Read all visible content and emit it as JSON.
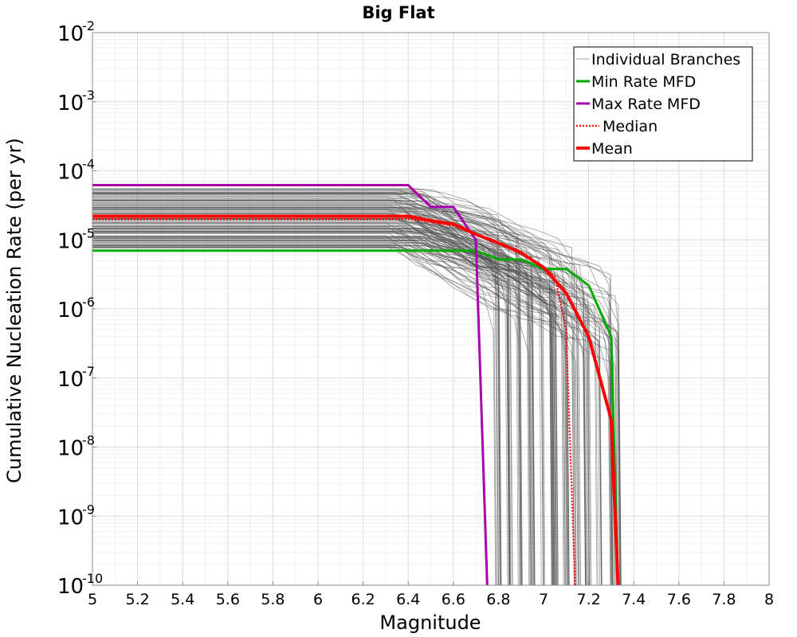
{
  "chart_data": {
    "type": "line",
    "title": "Big Flat",
    "xlabel": "Magnitude",
    "ylabel": "Cumulative Nucleation Rate (per yr)",
    "xlim": [
      5,
      8
    ],
    "ylim": [
      1e-10,
      0.01
    ],
    "yscale": "log",
    "grid": true,
    "x_ticks": [
      {
        "value": 5,
        "label": "5"
      },
      {
        "value": 5.2,
        "label": "5.2"
      },
      {
        "value": 5.4,
        "label": "5.4"
      },
      {
        "value": 5.6,
        "label": "5.6"
      },
      {
        "value": 5.8,
        "label": "5.8"
      },
      {
        "value": 6,
        "label": "6"
      },
      {
        "value": 6.2,
        "label": "6.2"
      },
      {
        "value": 6.4,
        "label": "6.4"
      },
      {
        "value": 6.6,
        "label": "6.6"
      },
      {
        "value": 6.8,
        "label": "6.8"
      },
      {
        "value": 7,
        "label": "7"
      },
      {
        "value": 7.2,
        "label": "7.2"
      },
      {
        "value": 7.4,
        "label": "7.4"
      },
      {
        "value": 7.6,
        "label": "7.6"
      },
      {
        "value": 7.8,
        "label": "7.8"
      },
      {
        "value": 8,
        "label": "8"
      }
    ],
    "y_ticks": [
      {
        "exp": -2,
        "base": "10",
        "sup": "-2"
      },
      {
        "exp": -3,
        "base": "10",
        "sup": "-3"
      },
      {
        "exp": -4,
        "base": "10",
        "sup": "-4"
      },
      {
        "exp": -5,
        "base": "10",
        "sup": "-5"
      },
      {
        "exp": -6,
        "base": "10",
        "sup": "-6"
      },
      {
        "exp": -7,
        "base": "10",
        "sup": "-7"
      },
      {
        "exp": -8,
        "base": "10",
        "sup": "-8"
      },
      {
        "exp": -9,
        "base": "10",
        "sup": "-9"
      },
      {
        "exp": -10,
        "base": "10",
        "sup": "-10"
      }
    ],
    "legend_position": "top-right",
    "legend": [
      {
        "label": "Individual Branches",
        "color": "#a9a9a9",
        "style": "thin"
      },
      {
        "label": "Min Rate MFD",
        "color": "#00aa00",
        "style": "solid"
      },
      {
        "label": "Max Rate MFD",
        "color": "#aa00aa",
        "style": "solid"
      },
      {
        "label": "Median",
        "color": "#ff0000",
        "style": "dotted"
      },
      {
        "label": "Mean",
        "color": "#ff0000",
        "style": "solid-thick"
      }
    ],
    "series": [
      {
        "name": "Min Rate MFD",
        "color": "#00aa00",
        "x": [
          5.0,
          6.7,
          6.8,
          6.9,
          7.0,
          7.1,
          7.2,
          7.3,
          7.33
        ],
        "y": [
          7e-06,
          7e-06,
          5.2e-06,
          5.2e-06,
          3.8e-06,
          3.8e-06,
          2.2e-06,
          4e-07,
          1e-10
        ]
      },
      {
        "name": "Max Rate MFD",
        "color": "#aa00aa",
        "x": [
          5.0,
          6.4,
          6.5,
          6.6,
          6.7,
          6.75
        ],
        "y": [
          6.2e-05,
          6.2e-05,
          3e-05,
          3e-05,
          1e-05,
          1e-10
        ]
      },
      {
        "name": "Mean",
        "color": "#ff0000",
        "x": [
          5.0,
          6.4,
          6.5,
          6.6,
          6.7,
          6.8,
          6.9,
          7.0,
          7.1,
          7.2,
          7.3,
          7.33
        ],
        "y": [
          2.2e-05,
          2.2e-05,
          1.9e-05,
          1.7e-05,
          1.2e-05,
          9e-06,
          6.5e-06,
          4e-06,
          1.7e-06,
          4e-07,
          2.5e-08,
          1e-10
        ]
      },
      {
        "name": "Median",
        "color": "#ff0000",
        "x": [
          5.0,
          6.4,
          6.5,
          6.6,
          6.7,
          6.8,
          6.9,
          7.0,
          7.05,
          7.1,
          7.14
        ],
        "y": [
          2e-05,
          2e-05,
          1.8e-05,
          1.6e-05,
          1.2e-05,
          9e-06,
          6.5e-06,
          4e-06,
          3e-06,
          5e-07,
          1e-10
        ]
      }
    ],
    "branches": {
      "name": "Individual Branches",
      "color": "#505050",
      "count": 140,
      "rate_range": [
        7e-06,
        6.2e-05
      ],
      "cutoff_magnitudes": [
        6.8,
        6.85,
        6.9,
        6.95,
        7.0,
        7.05,
        7.1,
        7.15,
        7.2,
        7.25,
        7.3,
        7.33
      ]
    }
  }
}
